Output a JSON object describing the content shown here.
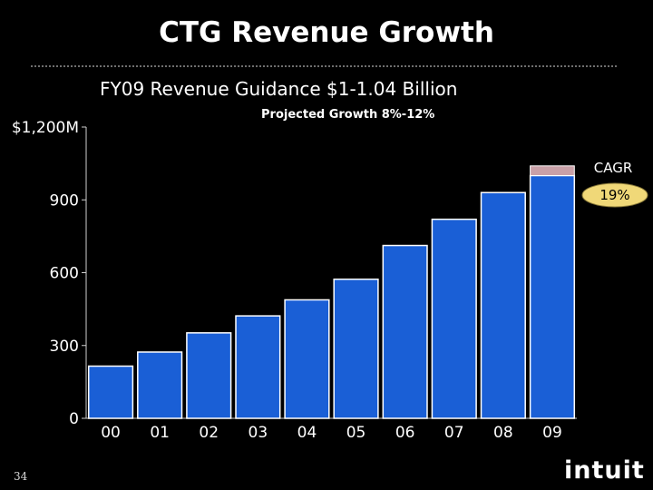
{
  "slide": {
    "title": "CTG Revenue Growth",
    "subtitle": "FY09 Revenue Guidance $1-1.04 Billion",
    "growth_note": "Projected Growth 8%-12%",
    "page_number": "34",
    "logo_text": "intuit"
  },
  "chart_data": {
    "type": "bar",
    "title": "",
    "xlabel": "",
    "ylabel": "",
    "categories": [
      "00",
      "01",
      "02",
      "03",
      "04",
      "05",
      "06",
      "07",
      "08",
      "09"
    ],
    "values": [
      215,
      273,
      352,
      422,
      488,
      573,
      712,
      820,
      930,
      1000
    ],
    "projected_range": [
      1000,
      1040
    ],
    "ylim": [
      0,
      1200
    ],
    "yticks": [
      {
        "value": 0,
        "label": "0"
      },
      {
        "value": 300,
        "label": "300"
      },
      {
        "value": 600,
        "label": "600"
      },
      {
        "value": 900,
        "label": "900"
      },
      {
        "value": 1200,
        "label": "$1,200M"
      }
    ],
    "bar_color": "#1a5fd6",
    "bar_edge_color": "#ffffff",
    "projection_color": "#c9a0a8",
    "annotation": {
      "label": "CAGR",
      "value": "19%",
      "badge_color": "#f0d878"
    }
  }
}
